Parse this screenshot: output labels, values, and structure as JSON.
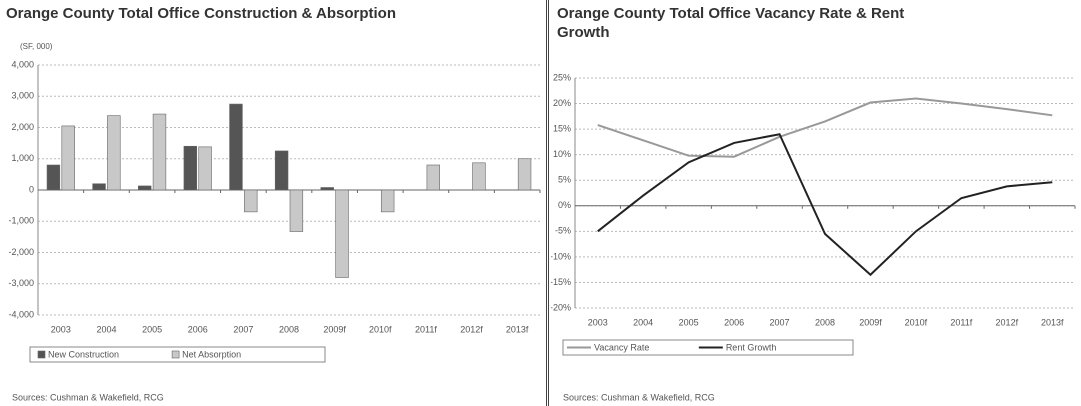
{
  "chart_data": [
    {
      "type": "bar",
      "title": "Orange County Total Office Construction & Absorption",
      "subtitle": "(SF, 000)",
      "categories": [
        "2003",
        "2004",
        "2005",
        "2006",
        "2007",
        "2008",
        "2009f",
        "2010f",
        "2011f",
        "2012f",
        "2013f"
      ],
      "series": [
        {
          "name": "New Construction",
          "color": "#555555",
          "values": [
            800,
            200,
            130,
            1400,
            2750,
            1250,
            80,
            0,
            0,
            0,
            0
          ]
        },
        {
          "name": "Net Absorption",
          "color": "#c8c8c8",
          "values": [
            2050,
            2380,
            2430,
            1380,
            -700,
            -1330,
            -2800,
            -700,
            800,
            870,
            1000
          ]
        }
      ],
      "ylim": [
        -4000,
        4000
      ],
      "yticks": [
        {
          "value": 4000,
          "label": "4,000"
        },
        {
          "value": 3000,
          "label": "3,000"
        },
        {
          "value": 2000,
          "label": "2,000"
        },
        {
          "value": 1000,
          "label": "1,000"
        },
        0,
        {
          "value": -1000,
          "label": "-1,000"
        },
        {
          "value": -2000,
          "label": "-2,000"
        },
        {
          "value": -3000,
          "label": "-3,000"
        },
        {
          "value": -4000,
          "label": "-4,000"
        }
      ],
      "grid": true,
      "source": "Sources: Cushman & Wakefield, RCG"
    },
    {
      "type": "line",
      "title": "Orange County Total Office Vacancy Rate & Rent Growth",
      "categories": [
        "2003",
        "2004",
        "2005",
        "2006",
        "2007",
        "2008",
        "2009f",
        "2010f",
        "2011f",
        "2012f",
        "2013f"
      ],
      "series": [
        {
          "name": "Vacancy Rate",
          "color": "#999999",
          "values": [
            15.8,
            12.8,
            9.8,
            9.6,
            13.5,
            16.5,
            20.2,
            21,
            20,
            18.9,
            17.7
          ]
        },
        {
          "name": "Rent Growth",
          "color": "#222222",
          "values": [
            -5,
            2,
            8.5,
            12.3,
            14,
            -5.5,
            -13.5,
            -5,
            1.5,
            3.8,
            4.6
          ]
        }
      ],
      "ylim": [
        -20,
        25
      ],
      "yticks": [
        {
          "value": 25,
          "label": "25%"
        },
        {
          "value": 20,
          "label": "20%"
        },
        {
          "value": 15,
          "label": "15%"
        },
        {
          "value": 10,
          "label": "10%"
        },
        {
          "value": 5,
          "label": "5%"
        },
        {
          "value": 0,
          "label": "0%"
        },
        {
          "value": -5,
          "label": "-5%"
        },
        {
          "value": -10,
          "label": "-10%"
        },
        {
          "value": -15,
          "label": "-15%"
        },
        {
          "value": -20,
          "label": "-20%"
        }
      ],
      "grid": true,
      "source": "Sources: Cushman & Wakefield, RCG"
    }
  ]
}
